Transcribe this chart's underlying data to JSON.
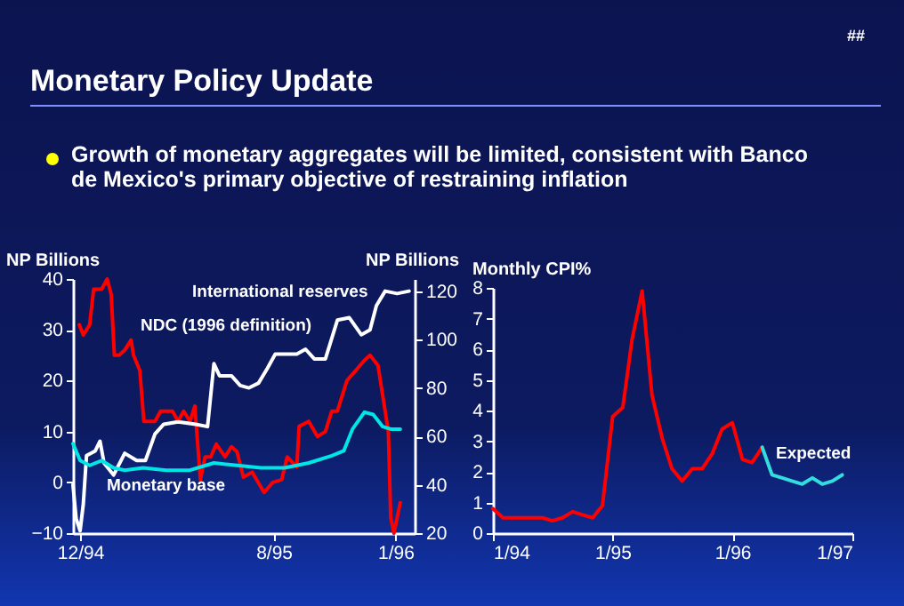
{
  "chart_data": [
    {
      "type": "line",
      "title": "Monetary Policy Update",
      "subtitle": "Growth of monetary aggregates will be limited, consistent with Banco de Mexico's primary objective of restraining inflation",
      "annotations": [
        "##"
      ],
      "ylabel": "NP Billions",
      "y2label": "NP Billions",
      "xlim": [
        "1994-11-22",
        "1996-01-25"
      ],
      "xticks": [
        {
          "value": "1994-12-01",
          "label": "12/94"
        },
        {
          "value": "1995-08-01",
          "label": "8/95"
        },
        {
          "value": "1996-01-01",
          "label": "1/96"
        }
      ],
      "ylim": [
        -10,
        40
      ],
      "yticks": [
        -10,
        0,
        10,
        20,
        30,
        40
      ],
      "y2lim": [
        20,
        125
      ],
      "y2ticks": [
        20,
        40,
        60,
        80,
        100,
        120
      ],
      "series": [
        {
          "name": "International reserves",
          "color": "#ffffff",
          "axis": "y2",
          "x": [
            "1994-11-22",
            "1994-11-26",
            "1994-12-01",
            "1994-12-05",
            "1994-12-09",
            "1994-12-20",
            "1994-12-26",
            "1994-12-31",
            "1995-01-12",
            "1995-01-26",
            "1995-02-10",
            "1995-02-21",
            "1995-03-05",
            "1995-03-16",
            "1995-04-03",
            "1995-04-25",
            "1995-05-10",
            "1995-05-18",
            "1995-05-25",
            "1995-06-09",
            "1995-06-20",
            "1995-07-01",
            "1995-07-13",
            "1995-07-24",
            "1995-08-03",
            "1995-08-30",
            "1995-09-10",
            "1995-09-21",
            "1995-10-05",
            "1995-10-20",
            "1995-11-04",
            "1995-11-19",
            "1995-11-30",
            "1995-12-08",
            "1995-12-19",
            "1996-01-03",
            "1996-01-18"
          ],
          "values": [
            40,
            26,
            21,
            32,
            52,
            54,
            58,
            49,
            44,
            53,
            50,
            50,
            61,
            65,
            66,
            65,
            64,
            90,
            85,
            85,
            81,
            80,
            82,
            88,
            94,
            94,
            96,
            92,
            92,
            108,
            109,
            102,
            104,
            114,
            120,
            119,
            120
          ]
        },
        {
          "name": "NDC (1996 definition)",
          "color": "#ff0000",
          "axis": "y",
          "x": [
            "1994-11-30",
            "1994-12-05",
            "1994-12-13",
            "1994-12-18",
            "1994-12-28",
            "1995-01-04",
            "1995-01-09",
            "1995-01-13",
            "1995-01-19",
            "1995-01-26",
            "1995-02-03",
            "1995-02-06",
            "1995-02-14",
            "1995-02-19",
            "1995-03-05",
            "1995-03-12",
            "1995-03-27",
            "1995-04-03",
            "1995-04-10",
            "1995-04-18",
            "1995-04-24",
            "1995-05-01",
            "1995-05-07",
            "1995-05-14",
            "1995-05-21",
            "1995-06-01",
            "1995-06-09",
            "1995-06-16",
            "1995-06-24",
            "1995-07-05",
            "1995-07-20",
            "1995-07-31",
            "1995-08-11",
            "1995-08-18",
            "1995-08-30",
            "1995-09-02",
            "1995-09-14",
            "1995-09-25",
            "1995-10-05",
            "1995-10-13",
            "1995-10-20",
            "1995-11-01",
            "1995-11-12",
            "1995-11-23",
            "1995-11-30",
            "1995-12-10",
            "1995-12-19",
            "1995-12-23",
            "1995-12-26",
            "1995-12-30",
            "1996-01-07"
          ],
          "values": [
            31,
            29,
            31,
            38,
            38,
            40,
            37,
            25,
            25,
            26,
            28,
            25,
            22,
            12,
            12,
            14,
            14,
            12,
            14,
            12,
            15,
            0.5,
            5,
            5,
            7.5,
            5,
            7,
            6,
            1,
            2,
            -2,
            0,
            0.5,
            5,
            3,
            11,
            12,
            9,
            10,
            14,
            14,
            20,
            22,
            24,
            25,
            23,
            14,
            10,
            -7,
            -10,
            -4
          ]
        },
        {
          "name": "Monetary base",
          "color": "#00e5e5",
          "axis": "y2",
          "x": [
            "1994-11-22",
            "1994-12-01",
            "1994-12-13",
            "1994-12-28",
            "1995-01-12",
            "1995-01-26",
            "1995-02-18",
            "1995-03-19",
            "1995-04-18",
            "1995-05-18",
            "1995-06-16",
            "1995-07-16",
            "1995-08-15",
            "1995-09-14",
            "1995-10-13",
            "1995-10-28",
            "1995-11-08",
            "1995-11-23",
            "1995-12-04",
            "1995-12-16",
            "1995-12-26",
            "1996-01-07"
          ],
          "values": [
            57,
            50,
            48,
            50,
            47,
            46,
            47,
            46,
            46,
            49,
            48,
            47,
            47,
            49,
            52,
            54,
            63,
            70,
            69,
            64,
            63,
            63
          ]
        }
      ]
    },
    {
      "type": "line",
      "ylabel": "Monthly CPI%",
      "xlim": [
        "1994-01",
        "1997-01"
      ],
      "xticks": [
        {
          "value": "1994-01",
          "label": "1/94"
        },
        {
          "value": "1995-01",
          "label": "1/95"
        },
        {
          "value": "1996-01",
          "label": "1/96"
        },
        {
          "value": "1997-01",
          "label": "1/97"
        }
      ],
      "ylim": [
        0,
        8
      ],
      "yticks": [
        0,
        1,
        2,
        3,
        4,
        5,
        6,
        7,
        8
      ],
      "series": [
        {
          "color": "#ff0000",
          "x": [
            "1994-01",
            "1994-02",
            "1994-03",
            "1994-04",
            "1994-05",
            "1994-06",
            "1994-07",
            "1994-08",
            "1994-09",
            "1994-10",
            "1994-11",
            "1994-12",
            "1995-01",
            "1995-02",
            "1995-03",
            "1995-04",
            "1995-05",
            "1995-06",
            "1995-07",
            "1995-08",
            "1995-09",
            "1995-10",
            "1995-11",
            "1995-12",
            "1996-01",
            "1996-02",
            "1996-03",
            "1996-04"
          ],
          "values": [
            0.8,
            0.5,
            0.5,
            0.5,
            0.5,
            0.5,
            0.4,
            0.5,
            0.7,
            0.6,
            0.5,
            0.9,
            3.8,
            4.1,
            6.3,
            7.9,
            4.5,
            3.1,
            2.1,
            1.7,
            2.1,
            2.1,
            2.6,
            3.4,
            3.6,
            2.4,
            2.3,
            2.8
          ]
        },
        {
          "name": "Expected",
          "color": "#33dddd",
          "x": [
            "1996-04",
            "1996-05",
            "1996-06",
            "1996-07",
            "1996-08",
            "1996-09",
            "1996-10",
            "1996-11",
            "1996-12"
          ],
          "values": [
            2.8,
            1.9,
            1.8,
            1.7,
            1.6,
            1.8,
            1.6,
            1.7,
            1.9
          ]
        }
      ]
    }
  ]
}
